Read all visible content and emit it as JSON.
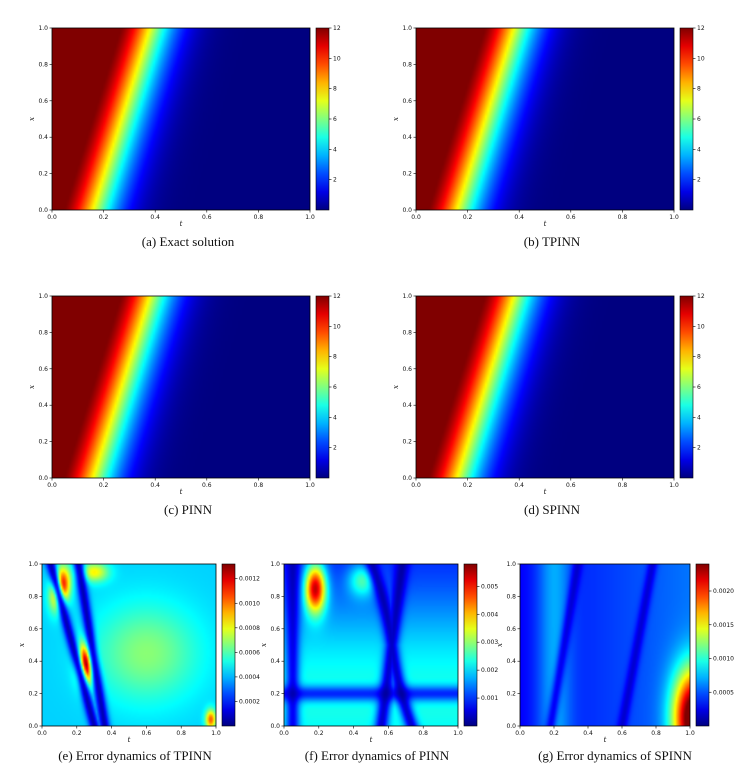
{
  "chart_data": [
    {
      "type": "heatmap",
      "caption": "(a) Exact solution",
      "field": "solution",
      "xlabel": "t",
      "ylabel": "x",
      "xlim": [
        0,
        1
      ],
      "ylim": [
        0,
        1
      ],
      "xticks": [
        "0.0",
        "0.2",
        "0.4",
        "0.6",
        "0.8",
        "1.0"
      ],
      "yticks": [
        "0.0",
        "0.2",
        "0.4",
        "0.6",
        "0.8",
        "1.0"
      ],
      "colorbar": {
        "min": 0,
        "max": 12,
        "ticks": [
          "2",
          "4",
          "6",
          "8",
          "10",
          "12"
        ],
        "values": [
          2,
          4,
          6,
          8,
          10,
          12
        ]
      },
      "colormap": "jet"
    },
    {
      "type": "heatmap",
      "caption": "(b) TPINN",
      "field": "solution",
      "xlabel": "t",
      "ylabel": "x",
      "xlim": [
        0,
        1
      ],
      "ylim": [
        0,
        1
      ],
      "xticks": [
        "0.0",
        "0.2",
        "0.4",
        "0.6",
        "0.8",
        "1.0"
      ],
      "yticks": [
        "0.0",
        "0.2",
        "0.4",
        "0.6",
        "0.8",
        "1.0"
      ],
      "colorbar": {
        "min": 0,
        "max": 12,
        "ticks": [
          "2",
          "4",
          "6",
          "8",
          "10",
          "12"
        ],
        "values": [
          2,
          4,
          6,
          8,
          10,
          12
        ]
      },
      "colormap": "jet"
    },
    {
      "type": "heatmap",
      "caption": "(c) PINN",
      "field": "solution",
      "xlabel": "t",
      "ylabel": "x",
      "xlim": [
        0,
        1
      ],
      "ylim": [
        0,
        1
      ],
      "xticks": [
        "0.0",
        "0.2",
        "0.4",
        "0.6",
        "0.8",
        "1.0"
      ],
      "yticks": [
        "0.0",
        "0.2",
        "0.4",
        "0.6",
        "0.8",
        "1.0"
      ],
      "colorbar": {
        "min": 0,
        "max": 12,
        "ticks": [
          "2",
          "4",
          "6",
          "8",
          "10",
          "12"
        ],
        "values": [
          2,
          4,
          6,
          8,
          10,
          12
        ]
      },
      "colormap": "jet"
    },
    {
      "type": "heatmap",
      "caption": "(d) SPINN",
      "field": "solution",
      "xlabel": "t",
      "ylabel": "x",
      "xlim": [
        0,
        1
      ],
      "ylim": [
        0,
        1
      ],
      "xticks": [
        "0.0",
        "0.2",
        "0.4",
        "0.6",
        "0.8",
        "1.0"
      ],
      "yticks": [
        "0.0",
        "0.2",
        "0.4",
        "0.6",
        "0.8",
        "1.0"
      ],
      "colorbar": {
        "min": 0,
        "max": 12,
        "ticks": [
          "2",
          "4",
          "6",
          "8",
          "10",
          "12"
        ],
        "values": [
          2,
          4,
          6,
          8,
          10,
          12
        ]
      },
      "colormap": "jet"
    },
    {
      "type": "heatmap",
      "caption": "(e) Error dynamics of TPINN",
      "field": "error_tpinn",
      "xlabel": "t",
      "ylabel": "x",
      "xlim": [
        0,
        1
      ],
      "ylim": [
        0,
        1
      ],
      "xticks": [
        "0.0",
        "0.2",
        "0.4",
        "0.6",
        "0.8",
        "1.0"
      ],
      "yticks": [
        "0.0",
        "0.2",
        "0.4",
        "0.6",
        "0.8",
        "1.0"
      ],
      "colorbar": {
        "min": 0,
        "max": 0.00132,
        "ticks": [
          "0.0002",
          "0.0004",
          "0.0006",
          "0.0008",
          "0.0010",
          "0.0012"
        ],
        "values": [
          0.0002,
          0.0004,
          0.0006,
          0.0008,
          0.001,
          0.0012
        ]
      },
      "colormap": "jet"
    },
    {
      "type": "heatmap",
      "caption": "(f) Error dynamics of PINN",
      "field": "error_pinn",
      "xlabel": "t",
      "ylabel": "x",
      "xlim": [
        0,
        1
      ],
      "ylim": [
        0,
        1
      ],
      "xticks": [
        "0.0",
        "0.2",
        "0.4",
        "0.6",
        "0.8",
        "1.0"
      ],
      "yticks": [
        "0.0",
        "0.2",
        "0.4",
        "0.6",
        "0.8",
        "1.0"
      ],
      "colorbar": {
        "min": 0,
        "max": 0.0058,
        "ticks": [
          "0.001",
          "0.002",
          "0.003",
          "0.004",
          "0.005"
        ],
        "values": [
          0.001,
          0.002,
          0.003,
          0.004,
          0.005
        ]
      },
      "colormap": "jet"
    },
    {
      "type": "heatmap",
      "caption": "(g) Error dynamics of SPINN",
      "field": "error_spinn",
      "xlabel": "t",
      "ylabel": "x",
      "xlim": [
        0,
        1
      ],
      "ylim": [
        0,
        1
      ],
      "xticks": [
        "0.0",
        "0.2",
        "0.4",
        "0.6",
        "0.8",
        "1.0"
      ],
      "yticks": [
        "0.0",
        "0.2",
        "0.4",
        "0.6",
        "0.8",
        "1.0"
      ],
      "colorbar": {
        "min": 0,
        "max": 0.0024,
        "ticks": [
          "0.0005",
          "0.0010",
          "0.0015",
          "0.0020"
        ],
        "values": [
          0.0005,
          0.001,
          0.0015,
          0.002
        ]
      },
      "colormap": "jet"
    }
  ]
}
